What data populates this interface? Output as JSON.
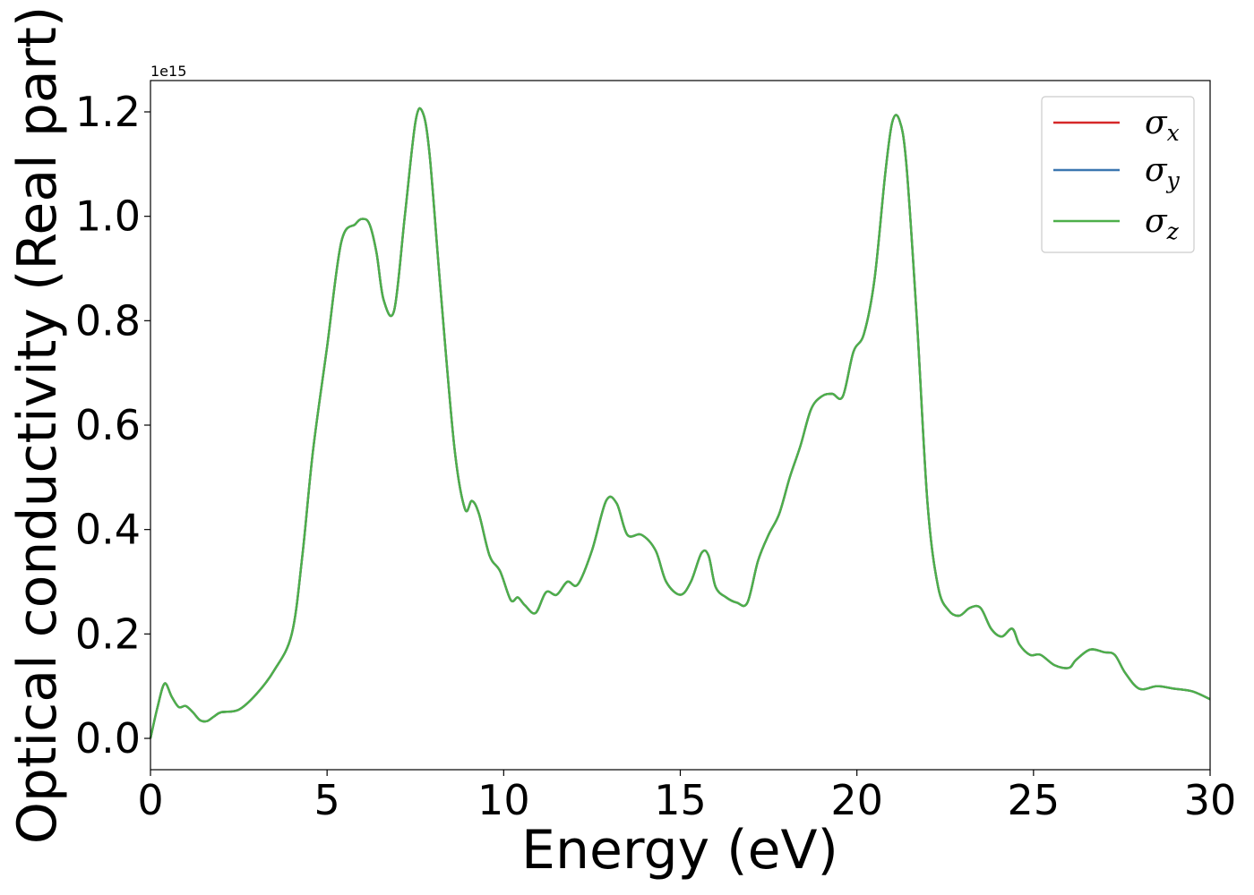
{
  "chart_data": {
    "type": "line",
    "xlabel": "Energy (eV)",
    "ylabel": "Optical conductivity (Real part)",
    "y_offset_text": "1e15",
    "xlim": [
      0,
      30
    ],
    "ylim": [
      -0.06,
      1.26
    ],
    "xticks": [
      0,
      5,
      10,
      15,
      20,
      25,
      30
    ],
    "yticks": [
      0.0,
      0.2,
      0.4,
      0.6,
      0.8,
      1.0,
      1.2
    ],
    "xtick_labels": [
      "0",
      "5",
      "10",
      "15",
      "20",
      "25",
      "30"
    ],
    "ytick_labels": [
      "0.0",
      "0.2",
      "0.4",
      "0.6",
      "0.8",
      "1.0",
      "1.2"
    ],
    "grid": false,
    "legend_position": "top-right",
    "x": [
      0.0,
      0.2,
      0.4,
      0.6,
      0.8,
      1.0,
      1.2,
      1.4,
      1.6,
      1.8,
      2.0,
      2.5,
      3.0,
      3.5,
      4.0,
      4.3,
      4.6,
      5.0,
      5.4,
      5.8,
      6.0,
      6.2,
      6.4,
      6.6,
      6.9,
      7.2,
      7.5,
      7.7,
      7.9,
      8.2,
      8.6,
      8.9,
      9.1,
      9.3,
      9.6,
      9.9,
      10.2,
      10.4,
      10.6,
      10.9,
      11.2,
      11.5,
      11.8,
      12.1,
      12.5,
      12.9,
      13.2,
      13.5,
      13.9,
      14.3,
      14.6,
      15.0,
      15.3,
      15.6,
      15.8,
      16.0,
      16.3,
      16.6,
      16.9,
      17.2,
      17.5,
      17.8,
      18.1,
      18.4,
      18.7,
      19.0,
      19.3,
      19.6,
      19.9,
      20.2,
      20.5,
      20.8,
      21.0,
      21.2,
      21.4,
      21.7,
      22.0,
      22.3,
      22.6,
      22.9,
      23.2,
      23.5,
      23.8,
      24.1,
      24.4,
      24.6,
      24.9,
      25.2,
      25.6,
      26.0,
      26.2,
      26.6,
      27.0,
      27.3,
      27.6,
      28.0,
      28.5,
      29.0,
      29.5,
      30.0
    ],
    "series": [
      {
        "name": "σx",
        "color": "#d62728",
        "values": [
          0.0,
          0.06,
          0.105,
          0.08,
          0.06,
          0.062,
          0.05,
          0.035,
          0.033,
          0.042,
          0.05,
          0.055,
          0.085,
          0.13,
          0.2,
          0.35,
          0.55,
          0.75,
          0.95,
          0.985,
          0.995,
          0.985,
          0.93,
          0.84,
          0.82,
          1.0,
          1.18,
          1.2,
          1.12,
          0.87,
          0.56,
          0.44,
          0.455,
          0.43,
          0.35,
          0.32,
          0.265,
          0.27,
          0.255,
          0.24,
          0.28,
          0.275,
          0.3,
          0.295,
          0.36,
          0.455,
          0.45,
          0.39,
          0.39,
          0.36,
          0.3,
          0.275,
          0.3,
          0.355,
          0.35,
          0.29,
          0.27,
          0.26,
          0.26,
          0.34,
          0.39,
          0.43,
          0.5,
          0.56,
          0.63,
          0.655,
          0.66,
          0.655,
          0.74,
          0.775,
          0.88,
          1.08,
          1.18,
          1.185,
          1.1,
          0.8,
          0.45,
          0.29,
          0.245,
          0.235,
          0.25,
          0.25,
          0.21,
          0.195,
          0.21,
          0.18,
          0.16,
          0.16,
          0.14,
          0.135,
          0.15,
          0.17,
          0.165,
          0.16,
          0.125,
          0.095,
          0.1,
          0.095,
          0.09,
          0.075
        ]
      },
      {
        "name": "σy",
        "color": "#3b77b0",
        "values": [
          0.0,
          0.06,
          0.105,
          0.08,
          0.06,
          0.062,
          0.05,
          0.035,
          0.033,
          0.042,
          0.05,
          0.055,
          0.085,
          0.13,
          0.2,
          0.35,
          0.55,
          0.75,
          0.95,
          0.985,
          0.995,
          0.985,
          0.93,
          0.84,
          0.82,
          1.0,
          1.18,
          1.2,
          1.12,
          0.87,
          0.56,
          0.44,
          0.455,
          0.43,
          0.35,
          0.32,
          0.265,
          0.27,
          0.255,
          0.24,
          0.28,
          0.275,
          0.3,
          0.295,
          0.36,
          0.455,
          0.45,
          0.39,
          0.39,
          0.36,
          0.3,
          0.275,
          0.3,
          0.355,
          0.35,
          0.29,
          0.27,
          0.26,
          0.26,
          0.34,
          0.39,
          0.43,
          0.5,
          0.56,
          0.63,
          0.655,
          0.66,
          0.655,
          0.74,
          0.775,
          0.88,
          1.08,
          1.18,
          1.185,
          1.1,
          0.8,
          0.45,
          0.29,
          0.245,
          0.235,
          0.25,
          0.25,
          0.21,
          0.195,
          0.21,
          0.18,
          0.16,
          0.16,
          0.14,
          0.135,
          0.15,
          0.17,
          0.165,
          0.16,
          0.125,
          0.095,
          0.1,
          0.095,
          0.09,
          0.075
        ]
      },
      {
        "name": "σz",
        "color": "#4daf4a",
        "values": [
          0.0,
          0.06,
          0.105,
          0.08,
          0.06,
          0.062,
          0.05,
          0.035,
          0.033,
          0.042,
          0.05,
          0.055,
          0.085,
          0.13,
          0.2,
          0.35,
          0.55,
          0.75,
          0.95,
          0.985,
          0.995,
          0.985,
          0.93,
          0.84,
          0.82,
          1.0,
          1.18,
          1.2,
          1.12,
          0.87,
          0.56,
          0.44,
          0.455,
          0.43,
          0.35,
          0.32,
          0.265,
          0.27,
          0.255,
          0.24,
          0.28,
          0.275,
          0.3,
          0.295,
          0.36,
          0.455,
          0.45,
          0.39,
          0.39,
          0.36,
          0.3,
          0.275,
          0.3,
          0.355,
          0.35,
          0.29,
          0.27,
          0.26,
          0.26,
          0.34,
          0.39,
          0.43,
          0.5,
          0.56,
          0.63,
          0.655,
          0.66,
          0.655,
          0.74,
          0.775,
          0.88,
          1.08,
          1.18,
          1.185,
          1.1,
          0.8,
          0.45,
          0.29,
          0.245,
          0.235,
          0.25,
          0.25,
          0.21,
          0.195,
          0.21,
          0.18,
          0.16,
          0.16,
          0.14,
          0.135,
          0.15,
          0.17,
          0.165,
          0.16,
          0.125,
          0.095,
          0.1,
          0.095,
          0.09,
          0.075
        ]
      }
    ]
  }
}
